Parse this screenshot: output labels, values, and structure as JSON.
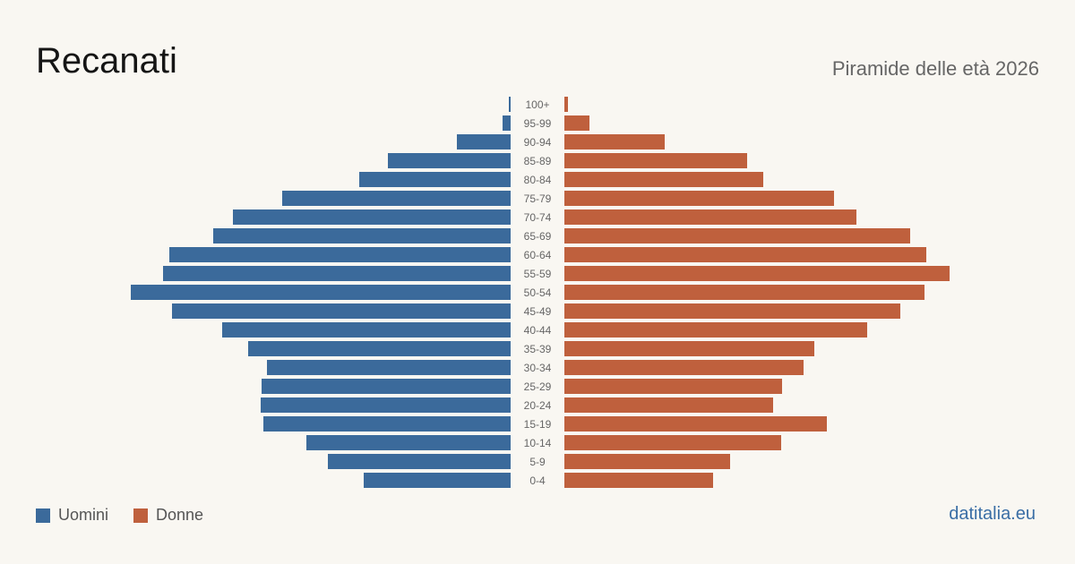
{
  "page": {
    "title": "Recanati",
    "subtitle": "Piramide delle età 2026",
    "brand": "datitalia.eu"
  },
  "colors": {
    "background": "#f9f7f2",
    "men": "#3b6a9b",
    "women": "#bf603d",
    "label": "#666666"
  },
  "chart_data": {
    "type": "bar",
    "categories": [
      "0-4",
      "5-9",
      "10-14",
      "15-19",
      "20-24",
      "25-29",
      "30-34",
      "35-39",
      "40-44",
      "45-49",
      "50-54",
      "55-59",
      "60-64",
      "65-69",
      "70-74",
      "75-79",
      "80-84",
      "85-89",
      "90-94",
      "95-99",
      "100+"
    ],
    "series": [
      {
        "name": "Uomini",
        "values": [
          164,
          204,
          228,
          276,
          279,
          278,
          272,
          293,
          322,
          378,
          424,
          388,
          381,
          332,
          310,
          255,
          169,
          137,
          60,
          9,
          2
        ]
      },
      {
        "name": "Donne",
        "values": [
          166,
          185,
          242,
          293,
          233,
          243,
          267,
          279,
          338,
          375,
          402,
          430,
          404,
          386,
          326,
          301,
          222,
          204,
          112,
          28,
          4
        ]
      }
    ],
    "legend": {
      "position": "bottom-left",
      "entries": [
        "Uomini",
        "Donne"
      ]
    },
    "orientation": "horizontal",
    "grid": false
  }
}
